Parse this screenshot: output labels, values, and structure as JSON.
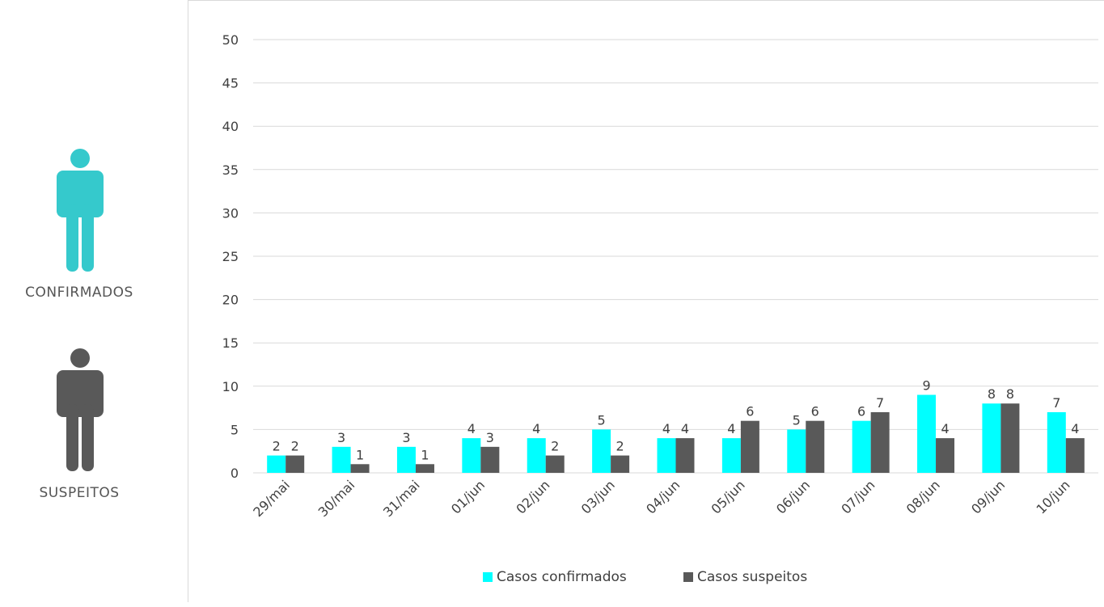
{
  "sidebar": {
    "confirmed_label": "CONFIRMADOS",
    "suspected_label": "SUSPEITOS",
    "confirmed_icon": "person-icon",
    "suspected_icon": "person-icon"
  },
  "colors": {
    "confirmed": "#00ffff",
    "suspected": "#595959",
    "confirmed_icon": "#35c9cc",
    "suspected_icon": "#595959",
    "gridline": "#d9d9d9",
    "text": "#404040"
  },
  "chart_data": {
    "type": "bar",
    "categories": [
      "29/mai",
      "30/mai",
      "31/mai",
      "01/jun",
      "02/jun",
      "03/jun",
      "04/jun",
      "05/jun",
      "06/jun",
      "07/jun",
      "08/jun",
      "09/jun",
      "10/jun"
    ],
    "series": [
      {
        "name": "Casos confirmados",
        "values": [
          2,
          3,
          3,
          4,
          4,
          5,
          4,
          4,
          5,
          6,
          9,
          8,
          7
        ]
      },
      {
        "name": "Casos suspeitos",
        "values": [
          2,
          1,
          1,
          3,
          2,
          2,
          4,
          6,
          6,
          7,
          4,
          8,
          4
        ]
      }
    ],
    "ylim": [
      0,
      50
    ],
    "yticks": [
      0,
      5,
      10,
      15,
      20,
      25,
      30,
      35,
      40,
      45,
      50
    ],
    "grid": true,
    "legend": "bottom",
    "data_labels": true
  }
}
